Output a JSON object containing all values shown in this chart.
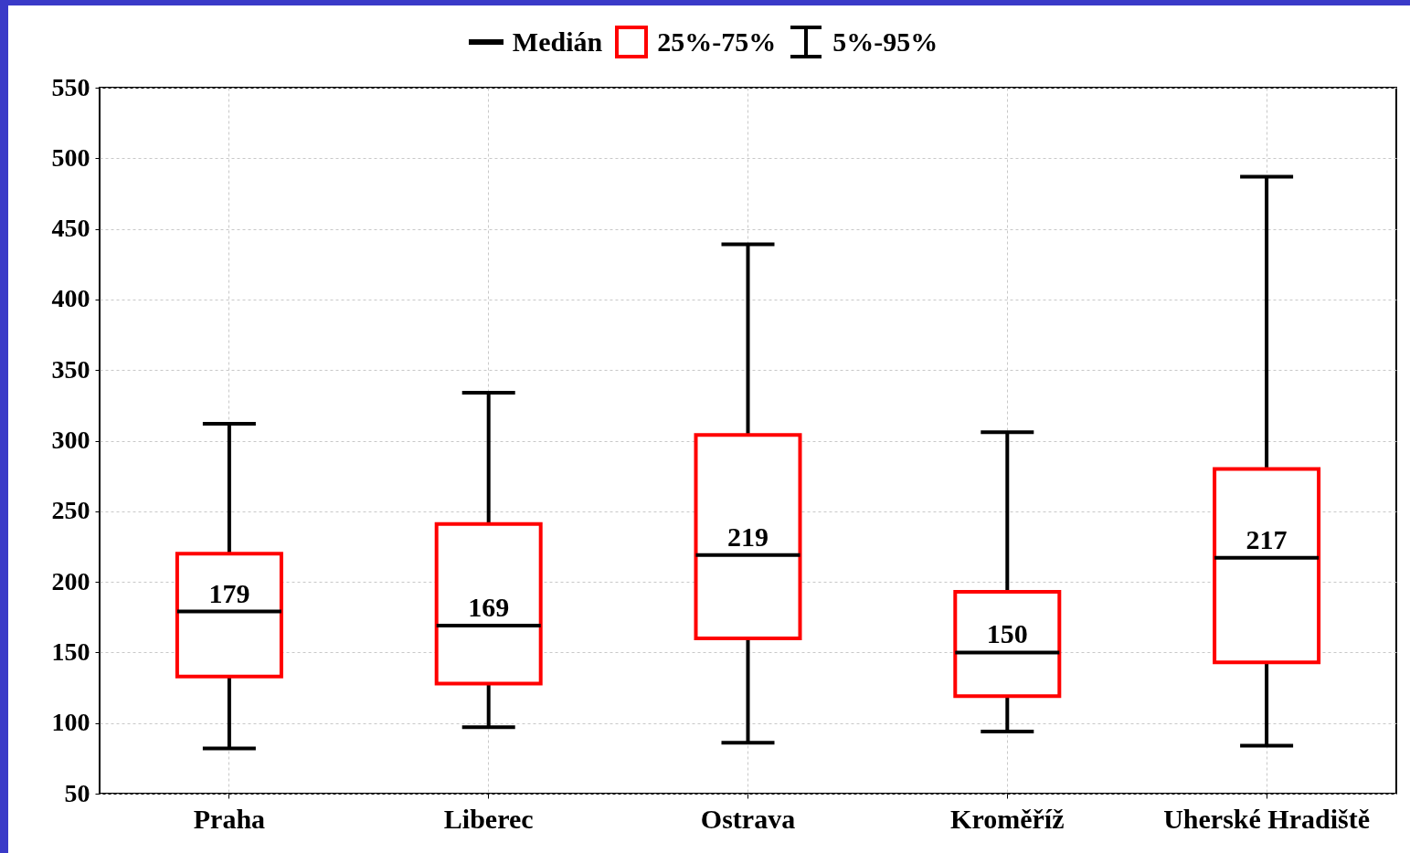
{
  "chart_data": {
    "type": "box",
    "categories": [
      "Praha",
      "Liberec",
      "Ostrava",
      "Kroměříž",
      "Uherské Hradiště"
    ],
    "series": [
      {
        "color": "#ff0000",
        "boxes": [
          {
            "low": 82,
            "q1": 133,
            "median": 179,
            "q3": 220,
            "high": 312
          },
          {
            "low": 97,
            "q1": 128,
            "median": 169,
            "q3": 241,
            "high": 334
          },
          {
            "low": 86,
            "q1": 160,
            "median": 219,
            "q3": 304,
            "high": 439
          },
          {
            "low": 94,
            "q1": 119,
            "median": 150,
            "q3": 193,
            "high": 306
          },
          {
            "low": 84,
            "q1": 143,
            "median": 217,
            "q3": 280,
            "high": 487
          }
        ]
      }
    ],
    "ylim": [
      50,
      550
    ],
    "yticks": [
      50,
      100,
      150,
      200,
      250,
      300,
      350,
      400,
      450,
      500,
      550
    ],
    "grid": true,
    "annotations": [
      "Medián",
      "25%-75%",
      "5%-95%",
      {
        "text": "179",
        "x": "Praha",
        "y": 179
      },
      {
        "text": "169",
        "x": "Liberec",
        "y": 169
      },
      {
        "text": "219",
        "x": "Ostrava",
        "y": 219
      },
      {
        "text": "150",
        "x": "Kroměříž",
        "y": 150
      },
      {
        "text": "217",
        "x": "Uherské Hradiště",
        "y": 217
      }
    ]
  }
}
